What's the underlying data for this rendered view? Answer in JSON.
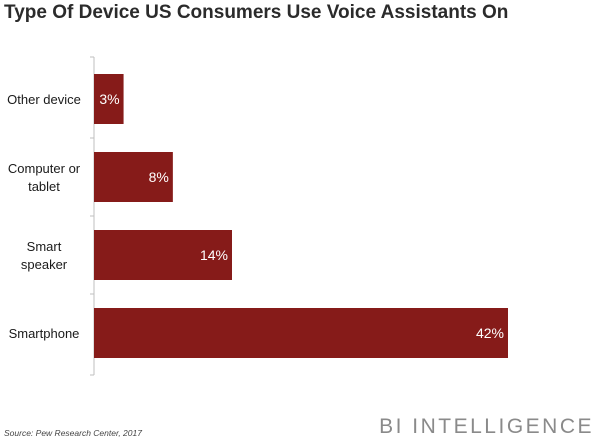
{
  "chart_data": {
    "type": "bar",
    "orientation": "horizontal",
    "title": "Type Of Device US Consumers Use Voice Assistants On",
    "categories": [
      [
        "Other device"
      ],
      [
        "Computer or",
        "tablet"
      ],
      [
        "Smart",
        "speaker"
      ],
      [
        "Smartphone"
      ]
    ],
    "values": [
      3,
      8,
      14,
      42
    ],
    "value_labels": [
      "3%",
      "8%",
      "14%",
      "42%"
    ],
    "unit": "%",
    "xlim": [
      0,
      42
    ],
    "grid": false,
    "legend": "none",
    "xlabel": "",
    "ylabel": ""
  },
  "colors": {
    "bar": "#861b19",
    "bar_label": "#ffffff",
    "axis": "#bfbfbf",
    "category_text": "#1a1a1a"
  },
  "footer": {
    "source": "Source: Pew Research Center, 2017",
    "brand": "BI INTELLIGENCE"
  }
}
